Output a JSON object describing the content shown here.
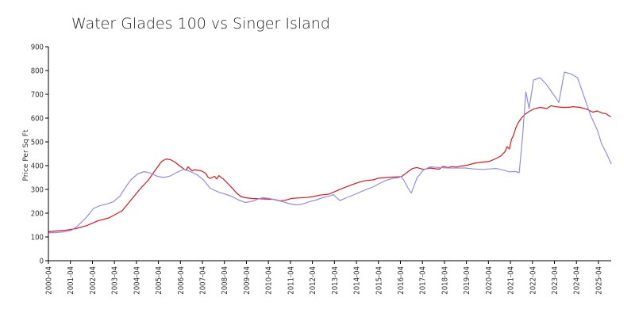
{
  "chart_data": {
    "type": "line",
    "title": "Water Glades 100 vs Singer Island",
    "xlabel": "",
    "ylabel": "Price Per Sq Ft",
    "ylim": [
      0,
      900
    ],
    "yticks": [
      0,
      100,
      200,
      300,
      400,
      500,
      600,
      700,
      800,
      900
    ],
    "xlim": [
      2000.25,
      2025.83
    ],
    "xticks": [
      "2000-04",
      "2001-04",
      "2002-04",
      "2003-04",
      "2004-04",
      "2005-04",
      "2006-04",
      "2007-04",
      "2008-04",
      "2009-04",
      "2010-04",
      "2011-04",
      "2012-04",
      "2013-04",
      "2014-04",
      "2015-04",
      "2016-04",
      "2017-04",
      "2018-04",
      "2019-04",
      "2020-04",
      "2021-04",
      "2022-04",
      "2023-04",
      "2024-04",
      "2025-04"
    ],
    "legend": "none",
    "grid": false,
    "series": [
      {
        "color": "#e8141c",
        "x": [
          2000.25,
          2001.0,
          2001.5,
          2002.0,
          2002.5,
          2003.0,
          2003.3,
          2003.6,
          2004.0,
          2004.4,
          2004.8,
          2005.1,
          2005.4,
          2005.6,
          2005.8,
          2006.0,
          2006.2,
          2006.5,
          2006.6,
          2006.7,
          2006.8,
          2006.9,
          2007.2,
          2007.4,
          2007.5,
          2007.6,
          2007.8,
          2007.9,
          2008.0,
          2008.2,
          2008.4,
          2008.6,
          2008.8,
          2009.0,
          2009.2,
          2009.5,
          2010.0,
          2010.5,
          2010.8,
          2011.0,
          2011.3,
          2011.6,
          2012.0,
          2012.3,
          2012.6,
          2013.0,
          2013.3,
          2013.6,
          2014.0,
          2014.3,
          2014.6,
          2015.0,
          2015.3,
          2015.6,
          2016.0,
          2016.3,
          2016.6,
          2016.8,
          2017.0,
          2017.3,
          2017.6,
          2018.0,
          2018.2,
          2018.4,
          2018.6,
          2018.8,
          2019.0,
          2019.3,
          2019.6,
          2020.0,
          2020.3,
          2020.6,
          2020.8,
          2021.0,
          2021.1,
          2021.2,
          2021.3,
          2021.4,
          2021.5,
          2021.6,
          2021.75,
          2021.9,
          2022.1,
          2022.3,
          2022.6,
          2022.9,
          2023.1,
          2023.3,
          2023.6,
          2023.9,
          2024.1,
          2024.4,
          2024.7,
          2025.0,
          2025.2,
          2025.4,
          2025.6,
          2025.8
        ],
        "values": [
          122,
          128,
          135,
          148,
          168,
          180,
          195,
          210,
          255,
          300,
          340,
          380,
          418,
          428,
          425,
          415,
          400,
          380,
          395,
          385,
          378,
          383,
          378,
          368,
          352,
          346,
          355,
          344,
          358,
          344,
          325,
          306,
          285,
          270,
          265,
          262,
          260,
          258,
          252,
          254,
          262,
          264,
          266,
          270,
          276,
          280,
          292,
          304,
          318,
          328,
          336,
          340,
          348,
          350,
          352,
          354,
          375,
          388,
          392,
          384,
          390,
          385,
          397,
          392,
          396,
          394,
          398,
          402,
          410,
          415,
          418,
          430,
          440,
          458,
          480,
          470,
          510,
          530,
          560,
          580,
          600,
          615,
          628,
          638,
          645,
          640,
          652,
          648,
          645,
          645,
          648,
          645,
          638,
          625,
          630,
          622,
          618,
          606
        ]
      },
      {
        "color": "#8e8ef0",
        "x": [
          2000.25,
          2000.6,
          2001.0,
          2001.3,
          2001.6,
          2002.0,
          2002.3,
          2002.6,
          2002.9,
          2003.2,
          2003.5,
          2003.8,
          2004.0,
          2004.3,
          2004.6,
          2004.9,
          2005.2,
          2005.5,
          2005.8,
          2006.1,
          2006.4,
          2006.7,
          2007.0,
          2007.3,
          2007.6,
          2008.0,
          2008.3,
          2008.6,
          2008.9,
          2009.2,
          2009.5,
          2009.8,
          2010.0,
          2010.3,
          2010.6,
          2010.9,
          2011.2,
          2011.5,
          2011.8,
          2012.1,
          2012.4,
          2012.7,
          2013.0,
          2013.1,
          2013.2,
          2013.5,
          2013.8,
          2014.2,
          2014.6,
          2015.0,
          2015.3,
          2015.6,
          2015.9,
          2016.2,
          2016.25,
          2016.4,
          2016.6,
          2016.7,
          2016.75,
          2017.0,
          2017.3,
          2017.6,
          2018.0,
          2018.4,
          2018.8,
          2019.2,
          2019.6,
          2020.0,
          2020.3,
          2020.6,
          2020.9,
          2021.2,
          2021.35,
          2021.5,
          2021.65,
          2021.8,
          2021.95,
          2022.1,
          2022.3,
          2022.6,
          2022.9,
          2023.2,
          2023.35,
          2023.45,
          2023.7,
          2024.0,
          2024.3,
          2024.6,
          2024.9,
          2025.2,
          2025.4,
          2025.6,
          2025.83
        ],
        "values": [
          118,
          118,
          122,
          128,
          148,
          185,
          220,
          232,
          238,
          248,
          272,
          315,
          340,
          365,
          375,
          368,
          355,
          350,
          357,
          372,
          385,
          375,
          362,
          340,
          305,
          288,
          280,
          270,
          255,
          245,
          250,
          260,
          265,
          262,
          255,
          248,
          240,
          235,
          238,
          248,
          255,
          265,
          272,
          274,
          278,
          253,
          265,
          280,
          296,
          310,
          325,
          338,
          346,
          350,
          355,
          340,
          305,
          290,
          285,
          348,
          382,
          395,
          392,
          390,
          390,
          390,
          386,
          384,
          386,
          388,
          382,
          374,
          375,
          375,
          370,
          520,
          710,
          640,
          760,
          770,
          740,
          700,
          680,
          665,
          793,
          786,
          770,
          690,
          610,
          550,
          490,
          455,
          408
        ]
      }
    ]
  }
}
